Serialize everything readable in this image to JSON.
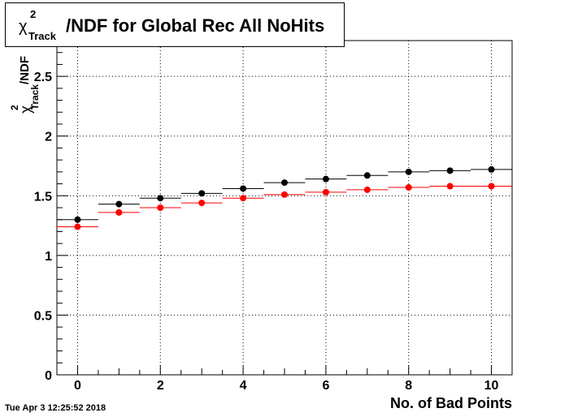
{
  "title": {
    "chi": "χ",
    "sup": "2",
    "sub": "Track",
    "rest": "/NDF for Global Rec All NoHits"
  },
  "timestamp": "Tue Apr  3 12:25:52 2018",
  "chart_data": {
    "type": "scatter",
    "xlabel": "No. of Bad Points",
    "ylabel": {
      "chi": "χ",
      "sup": "2",
      "sub": "Track",
      "rest": "/NDF"
    },
    "xlim": [
      -0.5,
      10.5
    ],
    "ylim": [
      0,
      2.8
    ],
    "x_ticks": [
      0,
      2,
      4,
      6,
      8,
      10
    ],
    "y_ticks": [
      0,
      0.5,
      1,
      1.5,
      2,
      2.5
    ],
    "x_tick_labels": [
      "0",
      "2",
      "4",
      "6",
      "8",
      "10"
    ],
    "y_tick_labels": [
      "0",
      "0.5",
      "1",
      "1.5",
      "2",
      "2.5"
    ],
    "grid": true,
    "series": [
      {
        "color": "#000000",
        "x": [
          0,
          1,
          2,
          3,
          4,
          5,
          6,
          7,
          8,
          9,
          10
        ],
        "values": [
          1.3,
          1.43,
          1.48,
          1.52,
          1.56,
          1.61,
          1.64,
          1.67,
          1.7,
          1.71,
          1.72
        ]
      },
      {
        "color": "#ff0000",
        "x": [
          0,
          1,
          2,
          3,
          4,
          5,
          6,
          7,
          8,
          9,
          10
        ],
        "values": [
          1.24,
          1.36,
          1.4,
          1.44,
          1.48,
          1.51,
          1.53,
          1.55,
          1.57,
          1.58,
          1.58
        ]
      }
    ]
  }
}
